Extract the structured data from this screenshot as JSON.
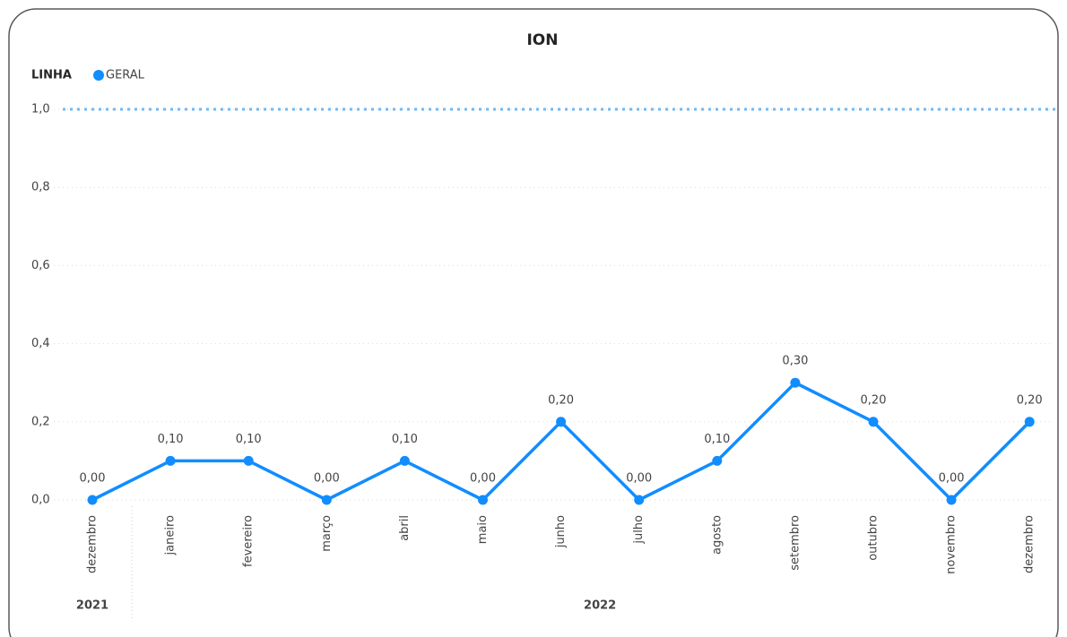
{
  "chart_data": {
    "type": "line",
    "title": "ION",
    "legend_title": "LINHA",
    "categories": [
      "dezembro",
      "janeiro",
      "fevereiro",
      "março",
      "abril",
      "maio",
      "junho",
      "julho",
      "agosto",
      "setembro",
      "outubro",
      "novembro",
      "dezembro"
    ],
    "x_groups": [
      {
        "name": "2021",
        "count": 1
      },
      {
        "name": "2022",
        "count": 12
      }
    ],
    "series": [
      {
        "name": "GERAL",
        "color": "#118dff",
        "values": [
          0,
          0.1,
          0.1,
          0,
          0.1,
          0,
          0.2,
          0,
          0.1,
          0.3,
          0.2,
          0,
          0.2
        ],
        "value_labels": [
          "0,00",
          "0,10",
          "0,10",
          "0,00",
          "0,10",
          "0,00",
          "0,20",
          "0,00",
          "0,10",
          "0,30",
          "0,20",
          "0,00",
          "0,20"
        ]
      }
    ],
    "ylim": [
      0,
      1
    ],
    "yticks": [
      {
        "value": 0,
        "label": "0,0"
      },
      {
        "value": 0.2,
        "label": "0,2"
      },
      {
        "value": 0.4,
        "label": "0,4"
      },
      {
        "value": 0.6,
        "label": "0,6"
      },
      {
        "value": 0.8,
        "label": "0,8"
      },
      {
        "value": 1,
        "label": "1,0"
      }
    ],
    "reference_line": {
      "value": 1,
      "color": "#6fb8f5"
    },
    "grid": true
  }
}
